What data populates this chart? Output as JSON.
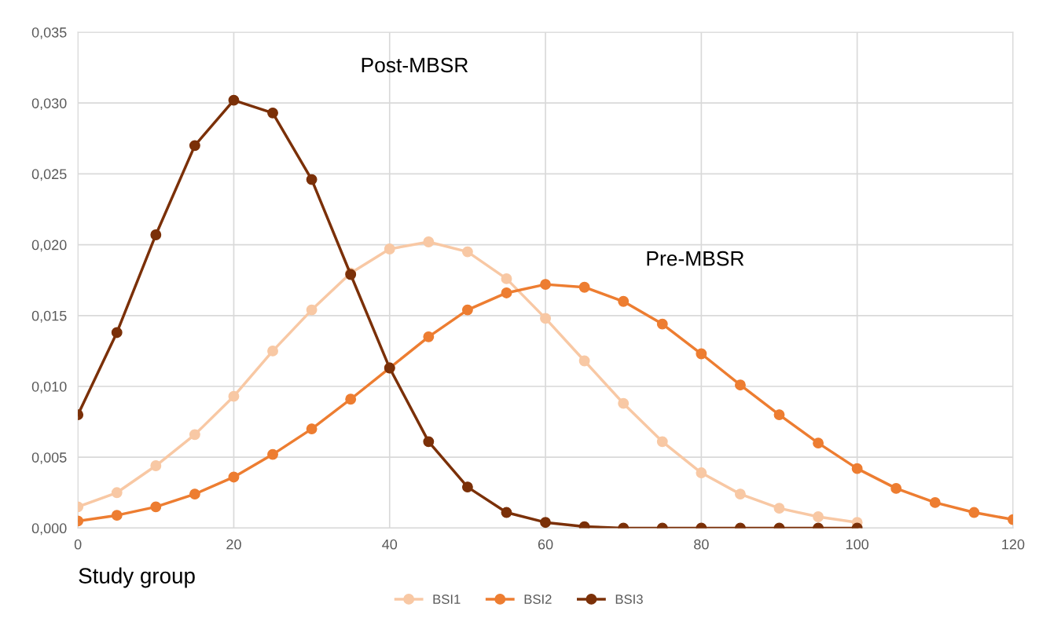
{
  "chart_data": {
    "type": "line",
    "xlabel": "Study group",
    "xlim": [
      0,
      120
    ],
    "xticks": [
      0,
      20,
      40,
      60,
      80,
      100,
      120
    ],
    "ylim": [
      0,
      0.035
    ],
    "yticks": [
      {
        "value": 0,
        "label": "0,000"
      },
      {
        "value": 0.005,
        "label": "0,005"
      },
      {
        "value": 0.01,
        "label": "0,010"
      },
      {
        "value": 0.015,
        "label": "0,015"
      },
      {
        "value": 0.02,
        "label": "0,020"
      },
      {
        "value": 0.025,
        "label": "0,025"
      },
      {
        "value": 0.03,
        "label": "0,030"
      },
      {
        "value": 0.035,
        "label": "0,035"
      }
    ],
    "grid": true,
    "legend": "bottom",
    "marker": "circle",
    "line_style": "solid",
    "annotations": [
      "Post-MBSR",
      "Pre-MBSR"
    ],
    "series": [
      {
        "name": "BSI1",
        "color": "#f8c8a4",
        "x": [
          0,
          5,
          10,
          15,
          20,
          25,
          30,
          35,
          40,
          45,
          50,
          55,
          60,
          65,
          70,
          75,
          80,
          85,
          90,
          95,
          100
        ],
        "values": [
          0.0015,
          0.0025,
          0.0044,
          0.0066,
          0.0093,
          0.0125,
          0.0154,
          0.018,
          0.0197,
          0.0202,
          0.0195,
          0.0176,
          0.0148,
          0.0118,
          0.0088,
          0.0061,
          0.0039,
          0.0024,
          0.0014,
          0.0008,
          0.0004
        ]
      },
      {
        "name": "BSI2",
        "color": "#ed7d31",
        "x": [
          0,
          5,
          10,
          15,
          20,
          25,
          30,
          35,
          40,
          45,
          50,
          55,
          60,
          65,
          70,
          75,
          80,
          85,
          90,
          95,
          100,
          105,
          110,
          115,
          120
        ],
        "values": [
          0.0005,
          0.0009,
          0.0015,
          0.0024,
          0.0036,
          0.0052,
          0.007,
          0.0091,
          0.0113,
          0.0135,
          0.0154,
          0.0166,
          0.0172,
          0.017,
          0.016,
          0.0144,
          0.0123,
          0.0101,
          0.008,
          0.006,
          0.0042,
          0.0028,
          0.0018,
          0.0011,
          0.0006
        ]
      },
      {
        "name": "BSI3",
        "color": "#7b3008",
        "x": [
          0,
          5,
          10,
          15,
          20,
          25,
          30,
          35,
          40,
          45,
          50,
          55,
          60,
          65,
          70,
          75,
          80,
          85,
          90,
          95,
          100
        ],
        "values": [
          0.008,
          0.0138,
          0.0207,
          0.027,
          0.0302,
          0.0293,
          0.0246,
          0.0179,
          0.0113,
          0.0061,
          0.0029,
          0.0011,
          0.0004,
          0.0001,
          0,
          0,
          0,
          0,
          0,
          0,
          0
        ]
      }
    ]
  }
}
